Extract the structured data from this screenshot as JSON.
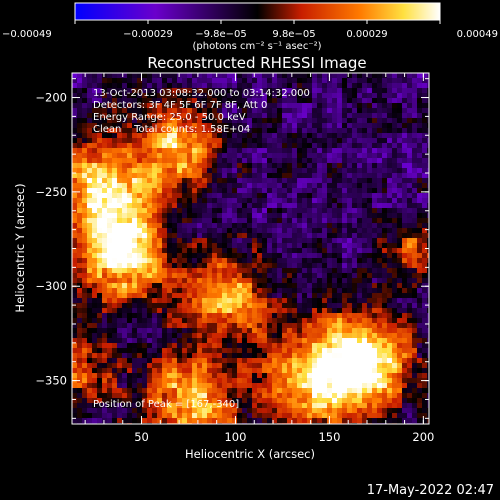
{
  "chart_data": {
    "type": "heatmap",
    "title": "Reconstructed RHESSI Image",
    "xlabel": "Heliocentric X (arcsec)",
    "ylabel": "Heliocentric Y (arcsec)",
    "xlim": [
      13,
      203
    ],
    "ylim": [
      -373,
      -187
    ],
    "x_ticks": [
      50,
      100,
      150,
      200
    ],
    "y_ticks": [
      -200,
      -250,
      -300,
      -350
    ],
    "x_tick_labels": [
      "50",
      "100",
      "150",
      "200"
    ],
    "y_tick_labels": [
      "−200",
      "−250",
      "−300",
      "−350"
    ],
    "colorbar": {
      "ticks": [
        "−0.00049",
        "−0.00029",
        "−9.8e−05",
        "9.8e−05",
        "0.00029",
        "0.00049"
      ],
      "range": [
        -0.00049,
        0.00049
      ],
      "unit_label": "(photons cm⁻² s⁻¹ asec⁻²)",
      "colormap": [
        "#0000ff",
        "#6600cc",
        "#000000",
        "#cc2200",
        "#ff8800",
        "#ffff66",
        "#ffffff"
      ]
    },
    "annotations": [
      "13-Oct-2013 03:08:32.000 to 03:14:32.000",
      "Detectors: 3F 4F 5F 6F 7F 8F, Att 0",
      "Energy Range: 25.0 - 50.0 keV",
      "Clean    Total counts: 1.58E+04",
      "Position of Peak = [167,-340]"
    ],
    "peak": {
      "x": 167,
      "y": -340
    },
    "bright_regions": [
      {
        "x": 30,
        "y": -250,
        "intensity": 0.0004,
        "spread": 22
      },
      {
        "x": 40,
        "y": -285,
        "intensity": 0.00042,
        "spread": 16
      },
      {
        "x": 70,
        "y": -225,
        "intensity": 0.00032,
        "spread": 14
      },
      {
        "x": 95,
        "y": -305,
        "intensity": 0.00035,
        "spread": 16
      },
      {
        "x": 75,
        "y": -360,
        "intensity": 0.00035,
        "spread": 18
      },
      {
        "x": 167,
        "y": -340,
        "intensity": 0.00049,
        "spread": 18
      },
      {
        "x": 140,
        "y": -350,
        "intensity": 0.0003,
        "spread": 20
      },
      {
        "x": 195,
        "y": -280,
        "intensity": 0.0002,
        "spread": 10
      },
      {
        "x": 15,
        "y": -345,
        "intensity": 0.0002,
        "spread": 14
      }
    ],
    "background_level": -0.00012
  },
  "footer": {
    "timestamp": "17-May-2022 02:47"
  }
}
